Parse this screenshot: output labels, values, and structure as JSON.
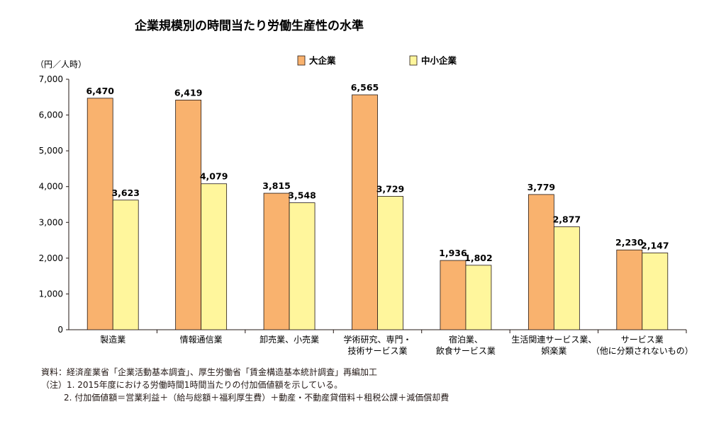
{
  "chart_data": {
    "type": "bar",
    "title": "企業規模別の時間当たり労働生産性の水準",
    "ylabel": "（円／人時）",
    "ylim": [
      0,
      7000
    ],
    "yticks": [
      "0",
      "1,000",
      "2,000",
      "3,000",
      "4,000",
      "5,000",
      "6,000",
      "7,000"
    ],
    "categories": [
      [
        "製造業"
      ],
      [
        "情報通信業"
      ],
      [
        "卸売業、小売業"
      ],
      [
        "学術研究、専門・",
        "技術サービス業"
      ],
      [
        "宿泊業、",
        "飲食サービス業"
      ],
      [
        "生活関連サービス業、",
        "娯楽業"
      ],
      [
        "サービス業",
        "（他に分類されないもの）"
      ]
    ],
    "series": [
      {
        "name": "大企業",
        "color": "#F9B26E",
        "values": [
          6470,
          6419,
          3815,
          6565,
          1936,
          3779,
          2230
        ],
        "labels": [
          "6,470",
          "6,419",
          "3,815",
          "6,565",
          "1,936",
          "3,779",
          "2,230"
        ]
      },
      {
        "name": "中小企業",
        "color": "#FFF69C",
        "values": [
          3623,
          4079,
          3548,
          3729,
          1802,
          2877,
          2147
        ],
        "labels": [
          "3,623",
          "4,079",
          "3,548",
          "3,729",
          "1,802",
          "2,877",
          "2,147"
        ]
      }
    ],
    "legend": "top-center",
    "grid": false
  },
  "notes": {
    "source": "資料：経済産業省「企業活動基本調査」、厚生労働省「賃金構造基本統計調査」再編加工",
    "note1": "（注）1. 2015年度における労働時間1時間当たりの付加価値額を示している。",
    "note2": "2. 付加価値額＝営業利益＋（給与総額＋福利厚生費）＋動産・不動産貸借料＋租税公課＋減価償却費"
  }
}
